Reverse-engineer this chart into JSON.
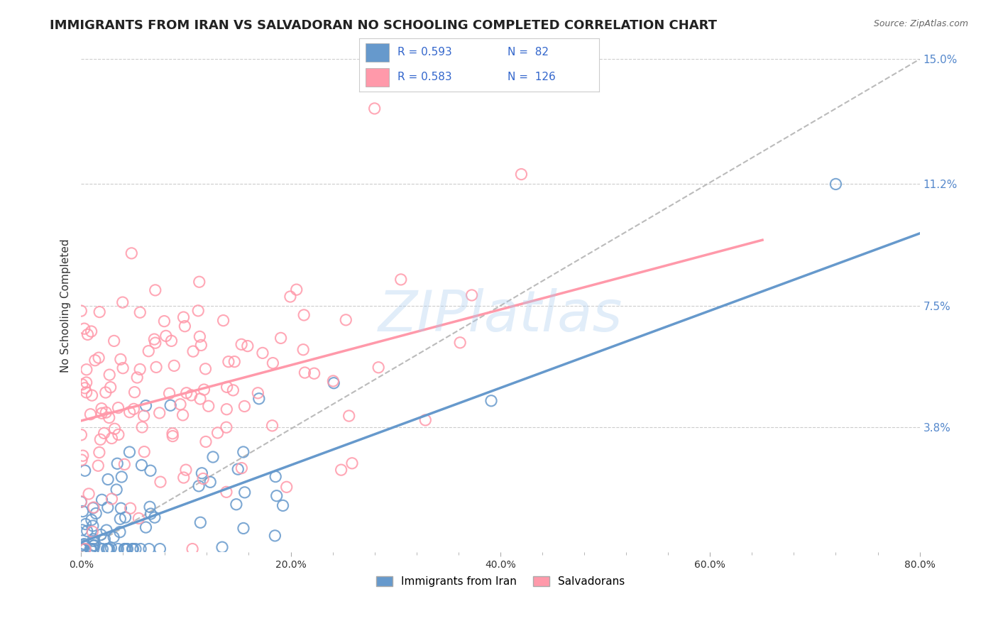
{
  "title": "IMMIGRANTS FROM IRAN VS SALVADORAN NO SCHOOLING COMPLETED CORRELATION CHART",
  "source": "Source: ZipAtlas.com",
  "ylabel": "No Schooling Completed",
  "xlim": [
    0.0,
    0.8
  ],
  "ylim": [
    0.0,
    0.15
  ],
  "xtick_labels": [
    "0.0%",
    "",
    "",
    "",
    "",
    "20.0%",
    "",
    "",
    "",
    "",
    "40.0%",
    "",
    "",
    "",
    "",
    "60.0%",
    "",
    "",
    "",
    "",
    "80.0%"
  ],
  "xtick_vals": [
    0.0,
    0.04,
    0.08,
    0.12,
    0.16,
    0.2,
    0.24,
    0.28,
    0.32,
    0.36,
    0.4,
    0.44,
    0.48,
    0.52,
    0.56,
    0.6,
    0.64,
    0.68,
    0.72,
    0.76,
    0.8
  ],
  "xtick_major_labels": [
    "0.0%",
    "20.0%",
    "40.0%",
    "60.0%",
    "80.0%"
  ],
  "xtick_major_vals": [
    0.0,
    0.2,
    0.4,
    0.6,
    0.8
  ],
  "ytick_labels": [
    "3.8%",
    "7.5%",
    "11.2%",
    "15.0%"
  ],
  "ytick_vals": [
    0.038,
    0.075,
    0.112,
    0.15
  ],
  "grid_color": "#cccccc",
  "background_color": "#ffffff",
  "series1_label": "Immigrants from Iran",
  "series1_color": "#6699cc",
  "series1_R": 0.593,
  "series1_N": 82,
  "series2_label": "Salvadorans",
  "series2_color": "#ff99aa",
  "series2_R": 0.583,
  "series2_N": 126,
  "watermark": "ZIPlatlas",
  "watermark_color": "#aaccee",
  "title_fontsize": 13,
  "axis_label_fontsize": 11,
  "tick_fontsize": 10,
  "legend_fontsize": 12,
  "blue_line_x0": 0.0,
  "blue_line_y0": 0.003,
  "blue_line_x1": 0.8,
  "blue_line_y1": 0.097,
  "pink_line_x0": 0.0,
  "pink_line_y0": 0.04,
  "pink_line_x1": 0.65,
  "pink_line_y1": 0.095,
  "dash_line_x0": 0.0,
  "dash_line_y0": 0.0,
  "dash_line_x1": 0.8,
  "dash_line_y1": 0.15
}
